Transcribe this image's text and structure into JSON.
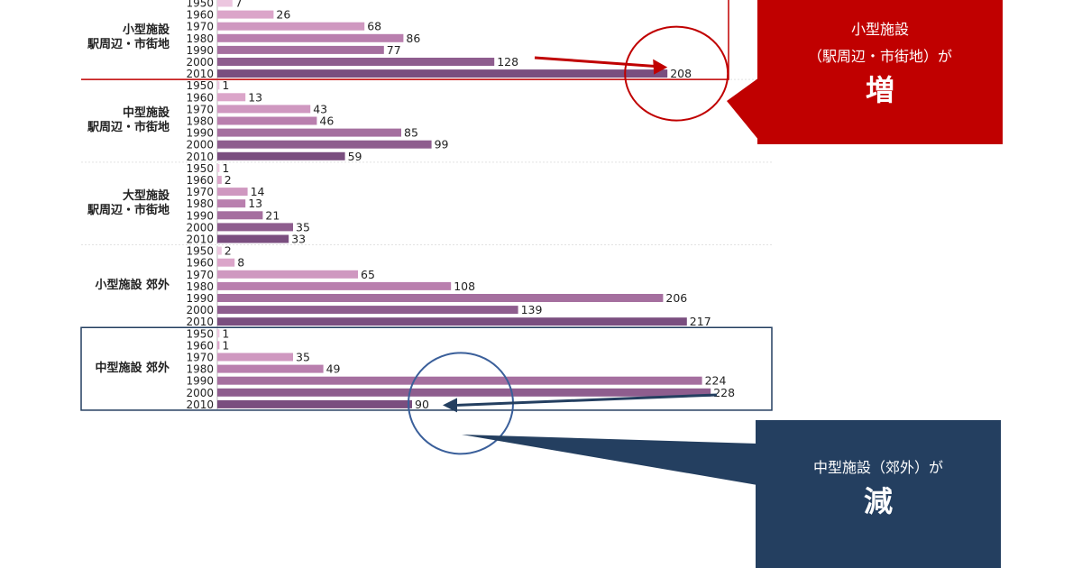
{
  "chart_data": {
    "type": "bar",
    "orientation": "horizontal",
    "years": [
      "1950",
      "1960",
      "1970",
      "1980",
      "1990",
      "2000",
      "2010"
    ],
    "groups": [
      {
        "label_lines": [
          "小型施設",
          "駅周辺・市街地"
        ],
        "values": [
          7,
          26,
          68,
          86,
          77,
          128,
          208
        ]
      },
      {
        "label_lines": [
          "中型施設",
          "駅周辺・市街地"
        ],
        "values": [
          1,
          13,
          43,
          46,
          85,
          99,
          59
        ]
      },
      {
        "label_lines": [
          "大型施設",
          "駅周辺・市街地"
        ],
        "values": [
          1,
          2,
          14,
          13,
          21,
          35,
          33
        ]
      },
      {
        "label_lines": [
          "小型施設 郊外"
        ],
        "values": [
          2,
          8,
          65,
          108,
          206,
          139,
          217
        ]
      },
      {
        "label_lines": [
          "中型施設 郊外"
        ],
        "values": [
          1,
          1,
          35,
          49,
          224,
          228,
          90
        ]
      }
    ],
    "bar_colors": [
      "#ecc6df",
      "#dba5c9",
      "#cf98c0",
      "#b97fae",
      "#a56f9f",
      "#8e5d8e",
      "#7a4e7f"
    ],
    "highlights": [
      {
        "group": 0,
        "year": "2010",
        "color": "#c00000"
      },
      {
        "group": 4,
        "year": "2010",
        "color": "#243f60"
      }
    ]
  },
  "callouts": {
    "increase": {
      "line1": "小型施設",
      "line2": "（駅周辺・市街地）が",
      "big": "増",
      "color": "#c00000"
    },
    "decrease": {
      "line1": "中型施設（郊外）が",
      "big": "減",
      "color": "#243f60"
    }
  }
}
